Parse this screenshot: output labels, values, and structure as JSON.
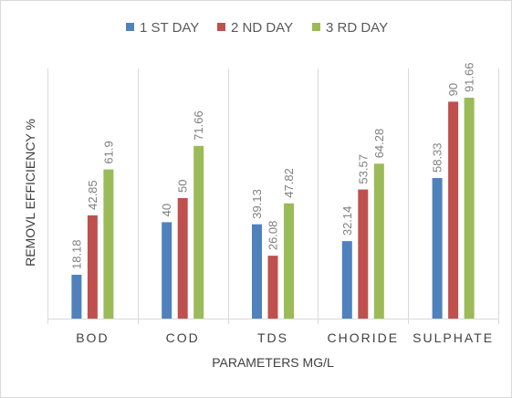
{
  "chart_data": {
    "type": "bar",
    "categories": [
      "BOD",
      "COD",
      "TDS",
      "CHORIDE",
      "SULPHATE"
    ],
    "series": [
      {
        "name": "1 ST DAY",
        "color": "#4f81bd",
        "values": [
          18.18,
          40,
          39.13,
          32.14,
          58.33
        ]
      },
      {
        "name": "2 ND DAY",
        "color": "#c0504d",
        "values": [
          42.85,
          50,
          26.08,
          53.57,
          90
        ]
      },
      {
        "name": "3 RD DAY",
        "color": "#9bbb59",
        "values": [
          61.9,
          71.66,
          47.82,
          64.28,
          91.66
        ]
      }
    ],
    "data_labels": [
      [
        "18.18",
        "40",
        "39.13",
        "32.14",
        "58.33"
      ],
      [
        "42.85",
        "50",
        "26.08",
        "53.57",
        "90"
      ],
      [
        "61.9",
        "71.66",
        "47.82",
        "64.28",
        "91.66"
      ]
    ],
    "xlabel": "PARAMETERS MG/L",
    "ylabel": "REMOVL EFFICIENCY %",
    "ylim": [
      0,
      100
    ],
    "grid": "vertical category separators",
    "legend_position": "top"
  }
}
